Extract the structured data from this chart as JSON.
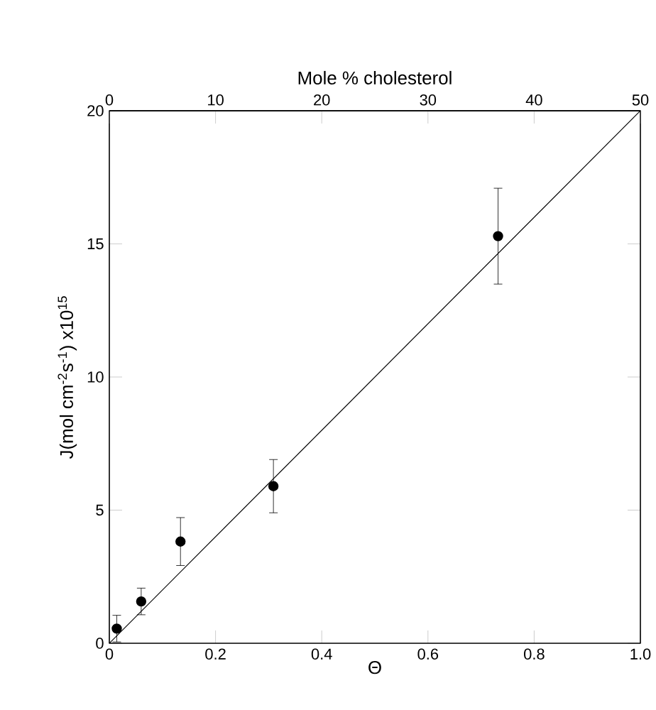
{
  "chart_data": {
    "type": "scatter",
    "xlabel": "Θ",
    "ylabel": "J(mol cm$^{-2}$s$^{-1}$) x10$^{15}$",
    "x2label": "Mole % cholesterol",
    "xlim": [
      0,
      1
    ],
    "xticks": [
      0,
      0.2,
      0.4,
      0.6,
      0.8,
      {
        "value": 1,
        "label": "1.0"
      }
    ],
    "ylim": [
      0,
      20
    ],
    "yticks": [
      0,
      5,
      10,
      15,
      20
    ],
    "x2lim": [
      0,
      50
    ],
    "x2ticks": [
      0,
      10,
      20,
      30,
      40,
      50
    ],
    "grid": false,
    "series": [
      {
        "color": "#000000",
        "marker": "circle",
        "x": [
          0.014,
          0.06,
          0.134,
          0.309,
          0.732
        ],
        "values": [
          0.55,
          1.57,
          3.82,
          5.9,
          15.29
        ],
        "errors": [
          0.5,
          0.5,
          0.9,
          1.0,
          1.8
        ]
      },
      {
        "type": "line",
        "color": "#000000",
        "x": [
          0,
          1
        ],
        "values": [
          0,
          20
        ],
        "marker": "none",
        "line_style": "solid"
      }
    ]
  }
}
